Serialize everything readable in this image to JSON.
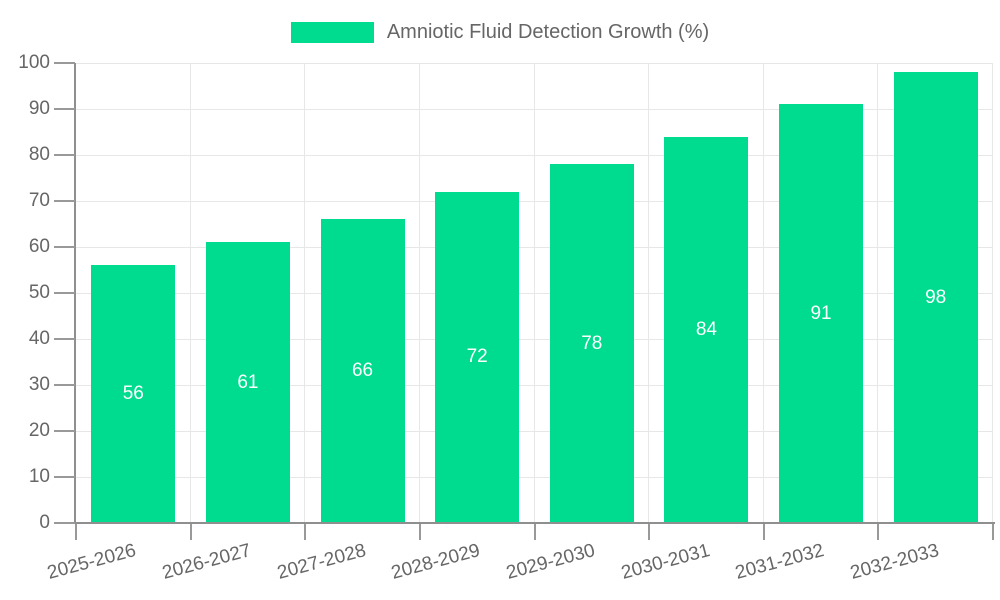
{
  "legend": {
    "label": "Amniotic Fluid Detection Growth (%)"
  },
  "colors": {
    "bar": "#00DC8F",
    "axis": "#8f8f8f",
    "gridline": "#e7e7e7",
    "tick_text": "#666666",
    "value_label": "#ffffff"
  },
  "chart_data": {
    "type": "bar",
    "title": "Amniotic Fluid Detection Growth (%)",
    "categories": [
      "2025-2026",
      "2026-2027",
      "2027-2028",
      "2028-2029",
      "2029-2030",
      "2030-2031",
      "2031-2032",
      "2032-2033"
    ],
    "values": [
      56,
      61,
      66,
      72,
      78,
      84,
      91,
      98
    ],
    "value_labels": [
      "56",
      "61",
      "66",
      "72",
      "78",
      "84",
      "91",
      "98"
    ],
    "xlabel": "",
    "ylabel": "",
    "ylim": [
      0,
      100
    ],
    "yticks": [
      0,
      10,
      20,
      30,
      40,
      50,
      60,
      70,
      80,
      90,
      100
    ],
    "grid": true,
    "legend_position": "top",
    "x_label_rotation_deg": -15,
    "bar_color": "#00DC8F",
    "value_label_color": "#ffffff"
  }
}
